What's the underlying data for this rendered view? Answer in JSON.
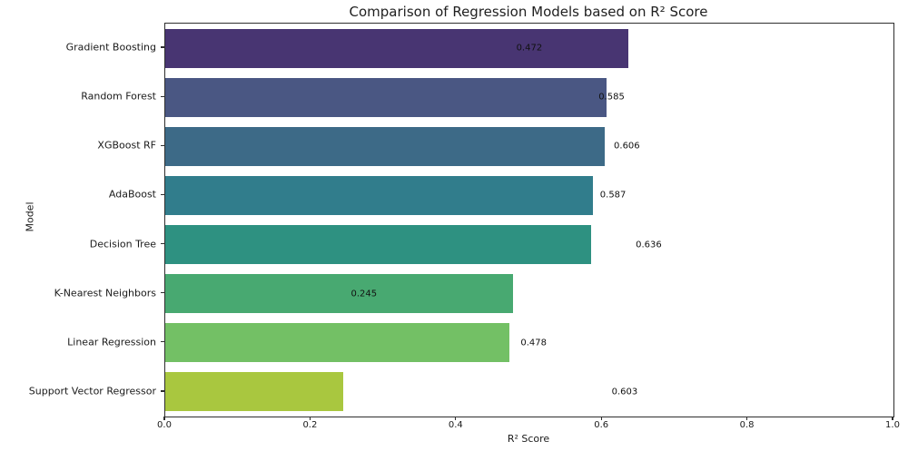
{
  "chart_data": {
    "type": "bar",
    "orientation": "horizontal",
    "title": "Comparison of Regression Models based on R² Score",
    "xlabel": "R² Score",
    "ylabel": "Model",
    "xlim": [
      0.0,
      1.0
    ],
    "xtick_labels": [
      "0.0",
      "0.2",
      "0.4",
      "0.6",
      "0.8",
      "1.0"
    ],
    "grid": false,
    "legend": false,
    "categories": [
      "Gradient Boosting",
      "Random Forest",
      "XGBoost RF",
      "AdaBoost",
      "Decision Tree",
      "K-Nearest Neighbors",
      "Linear Regression",
      "Support Vector Regressor"
    ],
    "values": [
      0.636,
      0.606,
      0.603,
      0.587,
      0.585,
      0.478,
      0.472,
      0.245
    ],
    "bar_colors": [
      "#483572",
      "#4a5783",
      "#3d6a87",
      "#317d8c",
      "#2e9181",
      "#48a971",
      "#73c065",
      "#a9c73f"
    ],
    "annotations": [
      {
        "text": "0.472",
        "x": 0.482
      },
      {
        "text": "0.585",
        "x": 0.595
      },
      {
        "text": "0.606",
        "x": 0.616
      },
      {
        "text": "0.587",
        "x": 0.597
      },
      {
        "text": "0.636",
        "x": 0.646
      },
      {
        "text": "0.245",
        "x": 0.255
      },
      {
        "text": "0.478",
        "x": 0.488
      },
      {
        "text": "0.603",
        "x": 0.613
      }
    ]
  }
}
